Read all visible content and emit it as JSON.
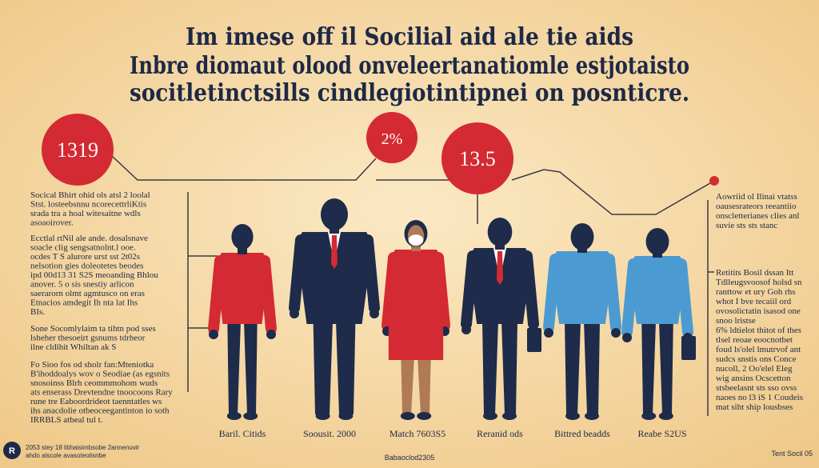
{
  "title": [
    "Im imese off il Socilial aid ale tie aids",
    "Inbre diomaut olood onveleertanatiomle estjotaisto",
    "socitletinctsills cindlegiotintipnei on posnticre."
  ],
  "stats": [
    "1319",
    "2%",
    "13.5"
  ],
  "left_notes": [
    [
      "Socical Bhirt ohid ols atsl 2 loolal",
      "Stst. losteebsnnu ncorecettrliKtis",
      "srada tra a hoal witesaitne wdls",
      "asoaoirover."
    ],
    [
      "Ecctlal rtNil ale ande. dosalsnave",
      "soacle clig sengsatnolnt.l ooe.",
      "ocdes T S alurore urst sst 2t02s",
      "nelsotion gies doleotetes beodes",
      "ipd 00d13 31 S2S meoanding Bhlou",
      "anover. 5 o sis snestiy arlicon",
      "saerarorn olmt agmtusco on eras",
      "Etnacios amdegit Ih nta lat Ihs",
      "BIs."
    ],
    [
      "Sone Socomlylaim ta tihtn pod sses",
      "lsheher thesoeirt gsnums tdrheor",
      "ilne cldihit Whiltan ak S"
    ],
    [
      "Fo Sioo fos od sholr fan:Mteniotka",
      "B'ihoddoalys wov o Seodiae (as egsnits",
      "snosoinss Blrh ceommmohom wuds",
      "ats enserass Drevtendne tnoocoons Rary",
      "rune tre Eaboordrideot taenntatles ws",
      "ihs anacdolie otbeoceegantinton io soth",
      "IRRBLS atbeal tul t."
    ]
  ],
  "right_notes": [
    [
      "Aowriid ol Ilinai vtatss",
      "oausesrateors reeantiio",
      "onscletterianes clies anl",
      "suvie sts sts stanc"
    ],
    [
      "Retitits Bosil dssan Itt",
      "Tdlleugsvoosof holsd sn",
      "ranttow et ury Goh rhs",
      "whot I bve tecaiil ord",
      "ovosolictatin isasod one",
      "snoo lristse",
      "6% ldtielot thitot of thes",
      "tlsel reoae eoocnotbet",
      "foud ls'olel lmutrvof ant",
      "sudcs snstis ons Conce",
      "nucoll, 2 Oo'elel Eleg",
      "wig ansins Ocscetton",
      "stsbeelasnt sts sso ovss",
      "naoes no l3 iS 1 Coudeis",
      "mat siht ship lousbses"
    ]
  ],
  "captions": [
    "Baril. Citids",
    "Soousit. 2000",
    "Match 7603S5",
    "Reranid ods",
    "Bittred beadds",
    "Reabe S2US"
  ],
  "footer": {
    "left": [
      "2053 stey 18 litihaisimbsobe 2annenuvir",
      "ahdo alscole avasoteolisnbe"
    ],
    "center": "Babaoclod2305",
    "right": "Tent Socil 05"
  }
}
